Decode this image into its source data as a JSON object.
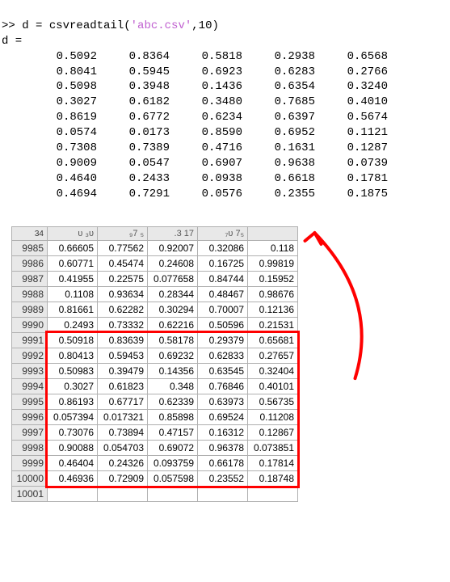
{
  "console": {
    "prompt": ">>",
    "command_pre": "d = csvreadtail(",
    "command_str": "'abc.csv'",
    "command_post": ",10)",
    "result_var": "d =",
    "matrix": [
      [
        "0.5092",
        "0.8364",
        "0.5818",
        "0.2938",
        "0.6568"
      ],
      [
        "0.8041",
        "0.5945",
        "0.6923",
        "0.6283",
        "0.2766"
      ],
      [
        "0.5098",
        "0.3948",
        "0.1436",
        "0.6354",
        "0.3240"
      ],
      [
        "0.3027",
        "0.6182",
        "0.3480",
        "0.7685",
        "0.4010"
      ],
      [
        "0.8619",
        "0.6772",
        "0.6234",
        "0.6397",
        "0.5674"
      ],
      [
        "0.0574",
        "0.0173",
        "0.8590",
        "0.6952",
        "0.1121"
      ],
      [
        "0.7308",
        "0.7389",
        "0.4716",
        "0.1631",
        "0.1287"
      ],
      [
        "0.9009",
        "0.0547",
        "0.6907",
        "0.9638",
        "0.0739"
      ],
      [
        "0.4640",
        "0.2433",
        "0.0938",
        "0.6618",
        "0.1781"
      ],
      [
        "0.4694",
        "0.7291",
        "0.0576",
        "0.2355",
        "0.1875"
      ]
    ]
  },
  "spreadsheet": {
    "partial_header": [
      "34",
      "ᴜ  ₃ᴜ",
      "₉7 ₅",
      "  .3  17",
      "₇ᴜ  7₅",
      ""
    ],
    "rows": [
      {
        "hdr": "9985",
        "cells": [
          "0.66605",
          "0.77562",
          "0.92007",
          "0.32086",
          "0.118"
        ]
      },
      {
        "hdr": "9986",
        "cells": [
          "0.60771",
          "0.45474",
          "0.24608",
          "0.16725",
          "0.99819"
        ]
      },
      {
        "hdr": "9987",
        "cells": [
          "0.41955",
          "0.22575",
          "0.077658",
          "0.84744",
          "0.15952"
        ]
      },
      {
        "hdr": "9988",
        "cells": [
          "0.1108",
          "0.93634",
          "0.28344",
          "0.48467",
          "0.98676"
        ]
      },
      {
        "hdr": "9989",
        "cells": [
          "0.81661",
          "0.62282",
          "0.30294",
          "0.70007",
          "0.12136"
        ]
      },
      {
        "hdr": "9990",
        "cells": [
          "0.2493",
          "0.73332",
          "0.62216",
          "0.50596",
          "0.21531"
        ]
      },
      {
        "hdr": "9991",
        "cells": [
          "0.50918",
          "0.83639",
          "0.58178",
          "0.29379",
          "0.65681"
        ]
      },
      {
        "hdr": "9992",
        "cells": [
          "0.80413",
          "0.59453",
          "0.69232",
          "0.62833",
          "0.27657"
        ]
      },
      {
        "hdr": "9993",
        "cells": [
          "0.50983",
          "0.39479",
          "0.14356",
          "0.63545",
          "0.32404"
        ]
      },
      {
        "hdr": "9994",
        "cells": [
          "0.3027",
          "0.61823",
          "0.348",
          "0.76846",
          "0.40101"
        ]
      },
      {
        "hdr": "9995",
        "cells": [
          "0.86193",
          "0.67717",
          "0.62339",
          "0.63973",
          "0.56735"
        ]
      },
      {
        "hdr": "9996",
        "cells": [
          "0.057394",
          "0.017321",
          "0.85898",
          "0.69524",
          "0.11208"
        ]
      },
      {
        "hdr": "9997",
        "cells": [
          "0.73076",
          "0.73894",
          "0.47157",
          "0.16312",
          "0.12867"
        ]
      },
      {
        "hdr": "9998",
        "cells": [
          "0.90088",
          "0.054703",
          "0.69072",
          "0.96378",
          "0.073851"
        ]
      },
      {
        "hdr": "9999",
        "cells": [
          "0.46404",
          "0.24326",
          "0.093759",
          "0.66178",
          "0.17814"
        ]
      },
      {
        "hdr": "10000",
        "cells": [
          "0.46936",
          "0.72909",
          "0.057598",
          "0.23552",
          "0.18748"
        ]
      },
      {
        "hdr": "10001",
        "cells": [
          "",
          "",
          "",
          "",
          "",
          ""
        ]
      }
    ],
    "highlight": {
      "first_row_index": 6,
      "last_row_index": 15,
      "color": "#ff0000",
      "width": 3
    }
  },
  "annotation": {
    "arrow_color": "#ff0000",
    "arrow_width": 4
  }
}
